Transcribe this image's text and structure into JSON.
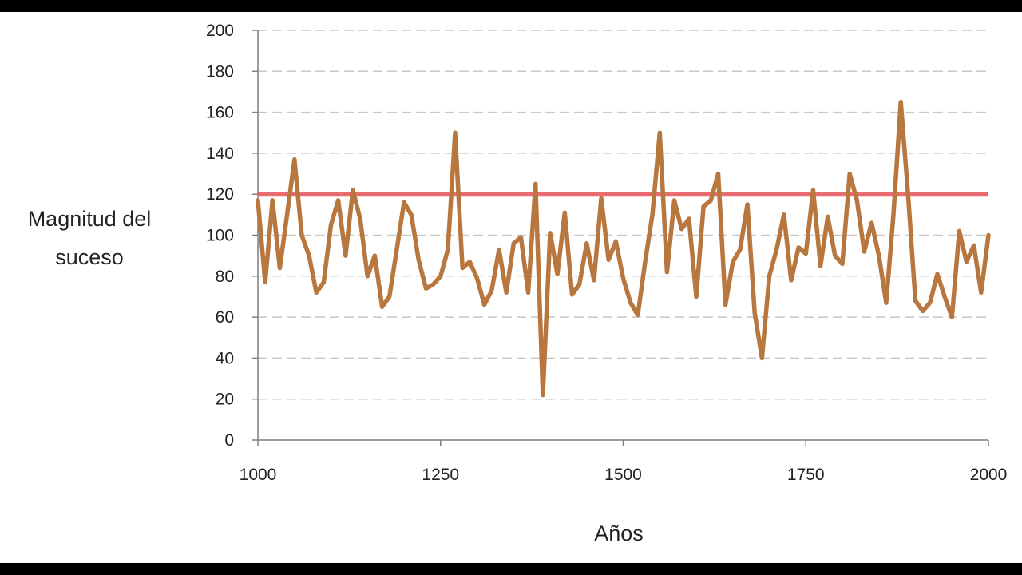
{
  "chart_data": {
    "type": "line",
    "xlabel": "Años",
    "ylabel_lines": [
      "Magnitud del",
      "suceso"
    ],
    "xlim": [
      1000,
      2000
    ],
    "ylim": [
      0,
      200
    ],
    "x_ticks": [
      1000,
      1250,
      1500,
      1750,
      2000
    ],
    "y_ticks": [
      0,
      20,
      40,
      60,
      80,
      100,
      120,
      140,
      160,
      180,
      200
    ],
    "grid": "horizontal-dashed",
    "threshold": {
      "value": 120,
      "color": "#e8555a"
    },
    "series": [
      {
        "color": "#b8773f",
        "x": [
          1000,
          1010,
          1020,
          1030,
          1040,
          1050,
          1060,
          1070,
          1080,
          1090,
          1100,
          1110,
          1120,
          1130,
          1140,
          1150,
          1160,
          1170,
          1180,
          1190,
          1200,
          1210,
          1220,
          1230,
          1240,
          1250,
          1260,
          1270,
          1280,
          1290,
          1300,
          1310,
          1320,
          1330,
          1340,
          1350,
          1360,
          1370,
          1380,
          1390,
          1400,
          1410,
          1420,
          1430,
          1440,
          1450,
          1460,
          1470,
          1480,
          1490,
          1500,
          1510,
          1520,
          1530,
          1540,
          1550,
          1560,
          1570,
          1580,
          1590,
          1600,
          1610,
          1620,
          1630,
          1640,
          1650,
          1660,
          1670,
          1680,
          1690,
          1700,
          1710,
          1720,
          1730,
          1740,
          1750,
          1760,
          1770,
          1780,
          1790,
          1800,
          1810,
          1820,
          1830,
          1840,
          1850,
          1860,
          1870,
          1880,
          1890,
          1900,
          1910,
          1920,
          1930,
          1940,
          1950,
          1960,
          1970,
          1980,
          1990,
          2000
        ],
        "y": [
          117,
          77,
          117,
          84,
          110,
          137,
          100,
          90,
          72,
          77,
          105,
          117,
          90,
          122,
          108,
          80,
          90,
          65,
          70,
          93,
          116,
          110,
          88,
          74,
          76,
          80,
          93,
          150,
          84,
          87,
          79,
          66,
          73,
          93,
          72,
          96,
          99,
          72,
          125,
          22,
          101,
          81,
          111,
          71,
          76,
          96,
          78,
          118,
          88,
          97,
          79,
          67,
          61,
          87,
          110,
          150,
          82,
          117,
          103,
          108,
          70,
          114,
          117,
          130,
          66,
          87,
          93,
          115,
          62,
          40,
          80,
          93,
          110,
          78,
          94,
          91,
          122,
          85,
          109,
          90,
          86,
          130,
          117,
          92,
          106,
          90,
          67,
          110,
          165,
          120,
          68,
          63,
          67,
          81,
          70,
          60,
          102,
          87,
          95,
          72,
          100
        ]
      }
    ]
  }
}
